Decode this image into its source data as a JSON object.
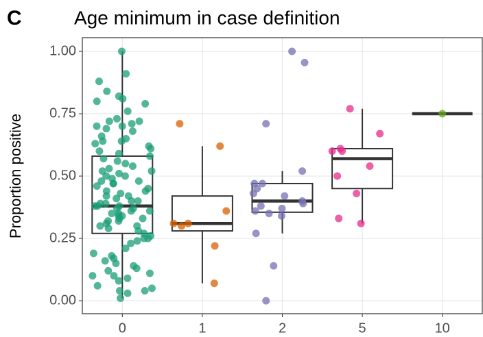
{
  "chart_data": {
    "type": "boxplot",
    "panel_label": "C",
    "title": "Age minimum in case definition",
    "y_label": "Proportion positive",
    "categories": [
      "0",
      "1",
      "2",
      "5",
      "10"
    ],
    "ylim": [
      -0.052,
      1.055
    ],
    "yticks": [
      {
        "value": 0,
        "label": "0.00"
      },
      {
        "value": 0.25,
        "label": "0.25"
      },
      {
        "value": 0.5,
        "label": "0.50"
      },
      {
        "value": 0.75,
        "label": "0.75"
      },
      {
        "value": 1,
        "label": "1.00"
      }
    ],
    "grid": true,
    "boxes": [
      {
        "color": "#1b9e77",
        "min": 0.01,
        "q1": 0.27,
        "median": 0.38,
        "q3": 0.58,
        "max": 1.0,
        "points": [
          1.0,
          0.91,
          0.88,
          0.84,
          0.82,
          0.81,
          0.8,
          0.79,
          0.76,
          0.73,
          0.72,
          0.72,
          0.71,
          0.7,
          0.7,
          0.69,
          0.68,
          0.66,
          0.65,
          0.64,
          0.64,
          0.63,
          0.62,
          0.61,
          0.6,
          0.59,
          0.58,
          0.57,
          0.56,
          0.55,
          0.54,
          0.53,
          0.52,
          0.52,
          0.51,
          0.5,
          0.5,
          0.49,
          0.48,
          0.48,
          0.47,
          0.47,
          0.46,
          0.45,
          0.44,
          0.44,
          0.43,
          0.42,
          0.42,
          0.41,
          0.4,
          0.4,
          0.39,
          0.39,
          0.38,
          0.38,
          0.38,
          0.37,
          0.37,
          0.36,
          0.36,
          0.35,
          0.35,
          0.34,
          0.34,
          0.33,
          0.33,
          0.32,
          0.32,
          0.31,
          0.3,
          0.3,
          0.29,
          0.28,
          0.27,
          0.26,
          0.25,
          0.25,
          0.24,
          0.23,
          0.21,
          0.19,
          0.18,
          0.17,
          0.16,
          0.15,
          0.14,
          0.13,
          0.12,
          0.11,
          0.1,
          0.1,
          0.09,
          0.08,
          0.06,
          0.05,
          0.04,
          0.04,
          0.03,
          0.01
        ]
      },
      {
        "color": "#d95f02",
        "min": 0.07,
        "q1": 0.28,
        "median": 0.31,
        "q3": 0.42,
        "max": 0.62,
        "points": [
          0.71,
          0.62,
          0.36,
          0.31,
          0.31,
          0.3,
          0.22,
          0.07
        ]
      },
      {
        "color": "#7570b3",
        "min": 0.27,
        "q1": 0.355,
        "median": 0.4,
        "q3": 0.47,
        "max": 0.52,
        "points": [
          1.0,
          0.955,
          0.71,
          0.52,
          0.47,
          0.47,
          0.45,
          0.43,
          0.42,
          0.4,
          0.39,
          0.38,
          0.37,
          0.36,
          0.35,
          0.34,
          0.27,
          0.14,
          0.0
        ]
      },
      {
        "color": "#e7298a",
        "min": 0.31,
        "q1": 0.45,
        "median": 0.57,
        "q3": 0.61,
        "max": 0.77,
        "points": [
          0.77,
          0.67,
          0.61,
          0.6,
          0.6,
          0.54,
          0.5,
          0.43,
          0.33,
          0.31
        ]
      },
      {
        "color": "#66a61e",
        "min": 0.75,
        "q1": 0.75,
        "median": 0.75,
        "q3": 0.75,
        "max": 0.75,
        "points": [
          0.75
        ]
      }
    ]
  }
}
